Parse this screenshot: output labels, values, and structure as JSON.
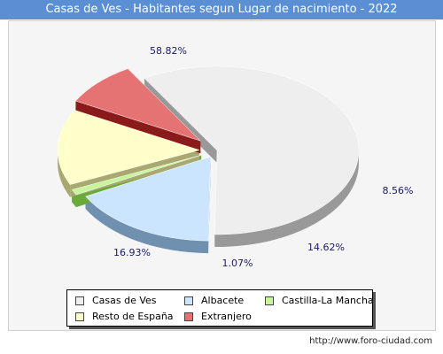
{
  "header": {
    "title": "Casas de Ves - Habitantes segun Lugar de nacimiento - 2022"
  },
  "chart_data": {
    "type": "pie",
    "title": "Casas de Ves - Habitantes segun Lugar de nacimiento - 2022",
    "categories": [
      "Casas de Ves",
      "Albacete",
      "Castilla-La Mancha",
      "Resto de España",
      "Extranjero"
    ],
    "values": [
      58.82,
      16.93,
      1.07,
      14.62,
      8.56
    ],
    "value_labels": [
      "58.82%",
      "16.93%",
      "1.07%",
      "14.62%",
      "8.56%"
    ],
    "colors": [
      "#eeeeee",
      "#cce5ff",
      "#c6f59c",
      "#ffffcc",
      "#e57373"
    ],
    "side_colors": [
      "#999999",
      "#7090b0",
      "#6aaa3a",
      "#a8a870",
      "#8b1a1a"
    ],
    "legend_placement": "bottom-center"
  },
  "footer": {
    "source": "http://www.foro-ciudad.com"
  }
}
